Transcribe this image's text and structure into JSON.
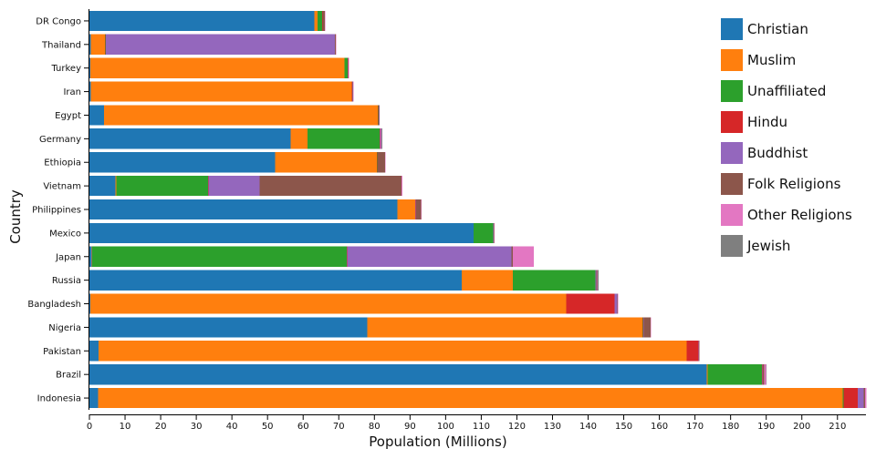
{
  "chart_data": {
    "type": "bar",
    "orientation": "horizontal",
    "stacked": true,
    "title": "",
    "xlabel": "Population (Millions)",
    "ylabel": "Country",
    "xlim": [
      0,
      218
    ],
    "xticks": [
      0,
      10,
      20,
      30,
      40,
      50,
      60,
      70,
      80,
      90,
      100,
      110,
      120,
      130,
      140,
      150,
      160,
      170,
      180,
      190,
      200,
      210
    ],
    "grid": false,
    "legend_position": "top-right",
    "colors": {
      "Christian": "#1f77b4",
      "Muslim": "#ff7f0e",
      "Unaffiliated": "#2ca02c",
      "Hindu": "#d62728",
      "Buddhist": "#9467bd",
      "Folk Religions": "#8c564b",
      "Other Religions": "#e377c2",
      "Jewish": "#7f7f7f"
    },
    "categories": [
      "DR Congo",
      "Thailand",
      "Turkey",
      "Iran",
      "Egypt",
      "Germany",
      "Ethiopia",
      "Vietnam",
      "Philippines",
      "Mexico",
      "Japan",
      "Russia",
      "Bangladesh",
      "Nigeria",
      "Pakistan",
      "Brazil",
      "Indonesia"
    ],
    "series": [
      {
        "name": "Christian",
        "values": [
          63.2,
          0.4,
          0.3,
          0.4,
          4.1,
          56.5,
          52.1,
          7.3,
          86.4,
          107.8,
          0.6,
          104.5,
          0.3,
          78.0,
          2.6,
          173.3,
          2.4
        ]
      },
      {
        "name": "Muslim",
        "values": [
          0.9,
          3.9,
          71.3,
          73.2,
          76.9,
          4.7,
          28.6,
          0.2,
          5.0,
          0.1,
          0.2,
          14.3,
          133.5,
          77.3,
          165.0,
          0.3,
          209.1
        ]
      },
      {
        "name": "Unaffiliated",
        "values": [
          1.2,
          0.2,
          0.9,
          0.1,
          0.1,
          20.3,
          0.1,
          25.8,
          0.1,
          5.4,
          71.5,
          23.2,
          0.1,
          0.1,
          0.1,
          15.2,
          0.2
        ]
      },
      {
        "name": "Hindu",
        "values": [
          0.1,
          0.1,
          0.1,
          0.1,
          0.1,
          0.1,
          0.1,
          0.1,
          0.1,
          0.1,
          0.1,
          0.1,
          13.5,
          0.1,
          3.3,
          0.1,
          4.0
        ]
      },
      {
        "name": "Buddhist",
        "values": [
          0.1,
          64.3,
          0.1,
          0.1,
          0.1,
          0.2,
          0.1,
          14.4,
          0.1,
          0.1,
          46.1,
          0.2,
          0.8,
          0.1,
          0.1,
          0.2,
          1.7
        ]
      },
      {
        "name": "Folk Religions",
        "values": [
          0.6,
          0.3,
          0.1,
          0.1,
          0.1,
          0.1,
          2.0,
          39.8,
          1.4,
          0.1,
          0.4,
          0.3,
          0.1,
          2.0,
          0.1,
          0.3,
          0.4
        ]
      },
      {
        "name": "Other Religions",
        "values": [
          0.1,
          0.1,
          0.1,
          0.1,
          0.1,
          0.1,
          0.1,
          0.3,
          0.1,
          0.1,
          5.9,
          0.1,
          0.1,
          0.1,
          0.1,
          0.6,
          0.3
        ]
      },
      {
        "name": "Jewish",
        "values": [
          0.0,
          0.0,
          0.0,
          0.0,
          0.0,
          0.2,
          0.0,
          0.0,
          0.0,
          0.1,
          0.0,
          0.2,
          0.0,
          0.0,
          0.0,
          0.1,
          0.0
        ]
      }
    ]
  }
}
